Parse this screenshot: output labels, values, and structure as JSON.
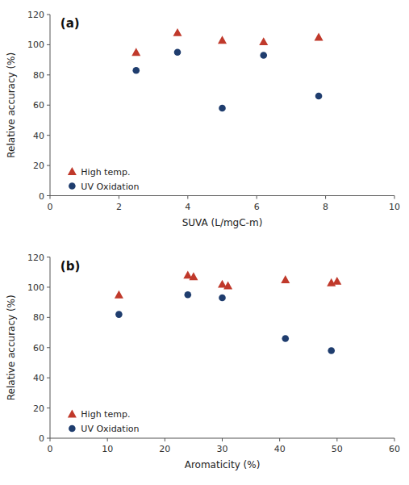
{
  "chart_data": [
    {
      "type": "scatter",
      "title": "(a)",
      "xlabel": "SUVA (L/mgC-m)",
      "ylabel": "Relative accuracy (%)",
      "xlim": [
        0,
        10
      ],
      "ylim": [
        0,
        120
      ],
      "xticks": [
        0,
        2,
        4,
        6,
        8,
        10
      ],
      "yticks": [
        0,
        20,
        40,
        60,
        80,
        100,
        120
      ],
      "grid": false,
      "legend": "lower left",
      "series": [
        {
          "name": "High temp.",
          "color": "#c0392b",
          "marker": "triangle",
          "x": [
            2.5,
            3.7,
            5.0,
            6.2,
            7.8
          ],
          "values": [
            95,
            108,
            103,
            102,
            105
          ]
        },
        {
          "name": "UV Oxidation",
          "color": "#1f3d6e",
          "marker": "circle",
          "x": [
            2.5,
            3.7,
            5.0,
            6.2,
            7.8
          ],
          "values": [
            83,
            95,
            58,
            93,
            66
          ]
        }
      ]
    },
    {
      "type": "scatter",
      "title": "(b)",
      "xlabel": "Aromaticity (%)",
      "ylabel": "Relative accuracy (%)",
      "xlim": [
        0,
        60
      ],
      "ylim": [
        0,
        120
      ],
      "xticks": [
        0,
        10,
        20,
        30,
        40,
        50,
        60
      ],
      "yticks": [
        0,
        20,
        40,
        60,
        80,
        100,
        120
      ],
      "grid": false,
      "legend": "lower left",
      "series": [
        {
          "name": "High temp.",
          "color": "#c0392b",
          "marker": "triangle",
          "x": [
            12,
            24,
            25,
            30,
            31,
            41,
            49,
            50
          ],
          "values": [
            95,
            108,
            107,
            102,
            101,
            105,
            103,
            104
          ]
        },
        {
          "name": "UV Oxidation",
          "color": "#1f3d6e",
          "marker": "circle",
          "x": [
            12,
            24,
            30,
            41,
            49
          ],
          "values": [
            82,
            95,
            93,
            66,
            58
          ]
        }
      ]
    }
  ]
}
